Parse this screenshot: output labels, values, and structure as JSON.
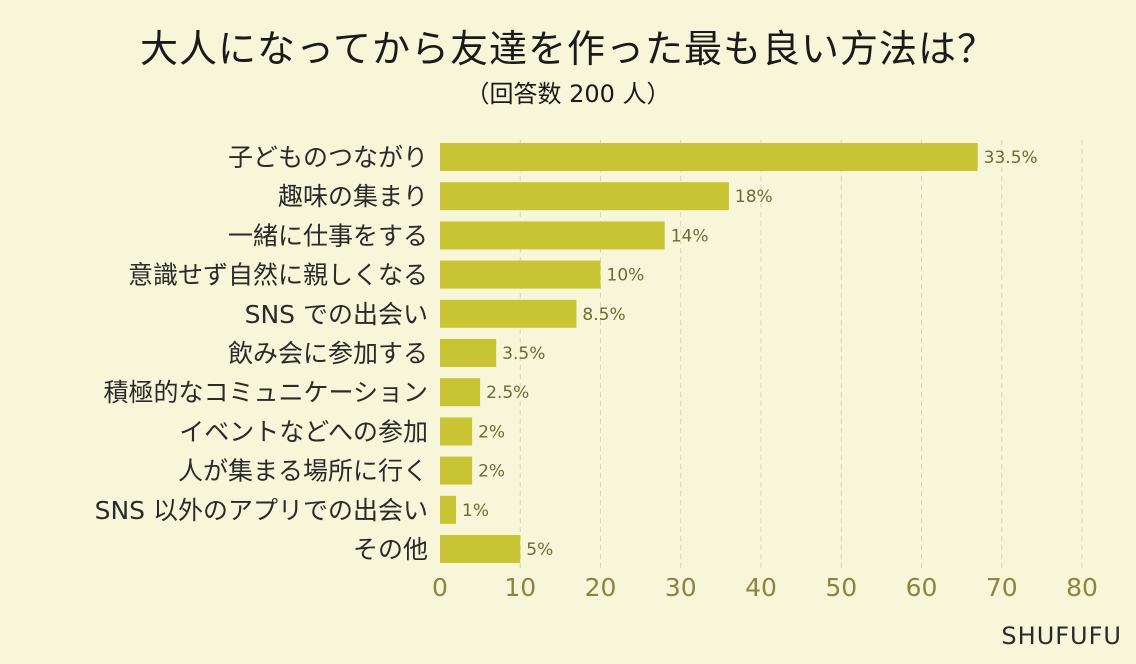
{
  "title": "大人になってから友達を作った最も良い方法は？",
  "subtitle": "（回答数 200 人）",
  "brand": "SHUFUFU",
  "colors": {
    "bar": "#c9c434",
    "grid": "#d9d6b0",
    "background": "#f7f6d9"
  },
  "chart_data": {
    "type": "bar",
    "orientation": "horizontal",
    "categories": [
      "子どものつながり",
      "趣味の集まり",
      "一緒に仕事をする",
      "意識せず自然に親しくなる",
      "SNS での出会い",
      "飲み会に参加する",
      "積極的なコミュニケーション",
      "イベントなどへの参加",
      "人が集まる場所に行く",
      "SNS 以外のアプリでの出会い",
      "その他"
    ],
    "values": [
      67,
      36,
      28,
      20,
      17,
      7,
      5,
      4,
      4,
      2,
      10
    ],
    "value_labels": [
      "33.5%",
      "18%",
      "14%",
      "10%",
      "8.5%",
      "3.5%",
      "2.5%",
      "2%",
      "2%",
      "1%",
      "5%"
    ],
    "xlim": [
      0,
      80
    ],
    "xticks": [
      0,
      10,
      20,
      30,
      40,
      50,
      60,
      70,
      80
    ],
    "grid": true,
    "title": "大人になってから友達を作った最も良い方法は？",
    "xlabel": "",
    "ylabel": ""
  }
}
